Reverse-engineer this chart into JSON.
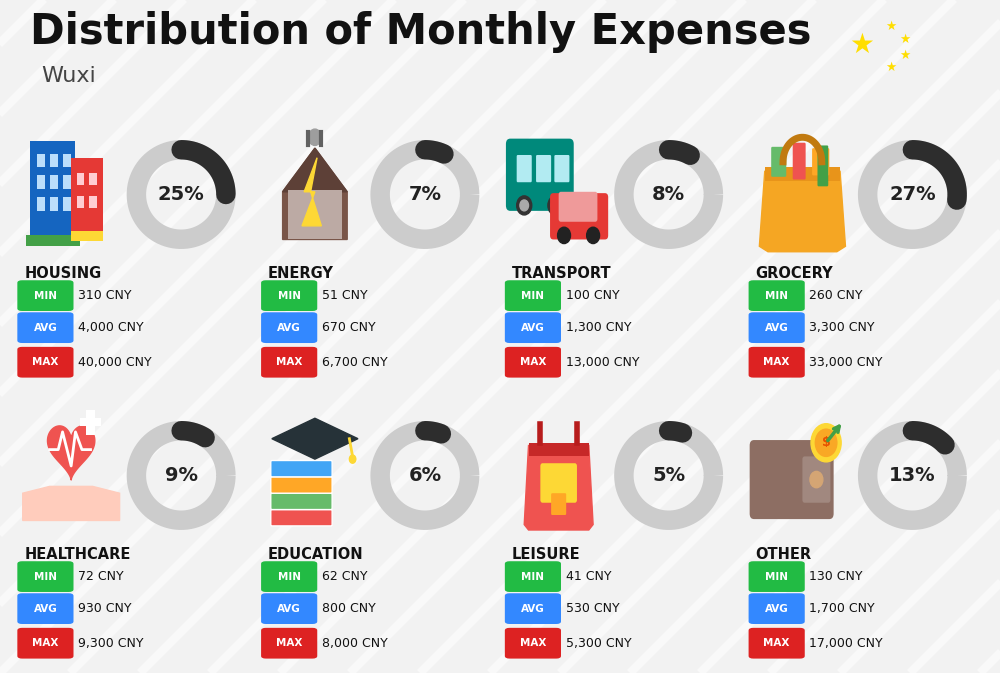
{
  "title": "Distribution of Monthly Expenses",
  "subtitle": "Wuxi",
  "background_color": "#f2f2f2",
  "categories": [
    {
      "name": "HOUSING",
      "pct": 25,
      "min_val": "310 CNY",
      "avg_val": "4,000 CNY",
      "max_val": "40,000 CNY",
      "row": 0,
      "col": 0
    },
    {
      "name": "ENERGY",
      "pct": 7,
      "min_val": "51 CNY",
      "avg_val": "670 CNY",
      "max_val": "6,700 CNY",
      "row": 0,
      "col": 1
    },
    {
      "name": "TRANSPORT",
      "pct": 8,
      "min_val": "100 CNY",
      "avg_val": "1,300 CNY",
      "max_val": "13,000 CNY",
      "row": 0,
      "col": 2
    },
    {
      "name": "GROCERY",
      "pct": 27,
      "min_val": "260 CNY",
      "avg_val": "3,300 CNY",
      "max_val": "33,000 CNY",
      "row": 0,
      "col": 3
    },
    {
      "name": "HEALTHCARE",
      "pct": 9,
      "min_val": "72 CNY",
      "avg_val": "930 CNY",
      "max_val": "9,300 CNY",
      "row": 1,
      "col": 0
    },
    {
      "name": "EDUCATION",
      "pct": 6,
      "min_val": "62 CNY",
      "avg_val": "800 CNY",
      "max_val": "8,000 CNY",
      "row": 1,
      "col": 1
    },
    {
      "name": "LEISURE",
      "pct": 5,
      "min_val": "41 CNY",
      "avg_val": "530 CNY",
      "max_val": "5,300 CNY",
      "row": 1,
      "col": 2
    },
    {
      "name": "OTHER",
      "pct": 13,
      "min_val": "130 CNY",
      "avg_val": "1,700 CNY",
      "max_val": "17,000 CNY",
      "row": 1,
      "col": 3
    }
  ],
  "min_color": "#22bb44",
  "avg_color": "#3388ff",
  "max_color": "#dd2222",
  "ring_color": "#2d2d2d",
  "ring_bg_color": "#cccccc",
  "title_fontsize": 30,
  "subtitle_fontsize": 16,
  "flag_color": "#EE1C25",
  "flag_star_color": "#FFDE00"
}
